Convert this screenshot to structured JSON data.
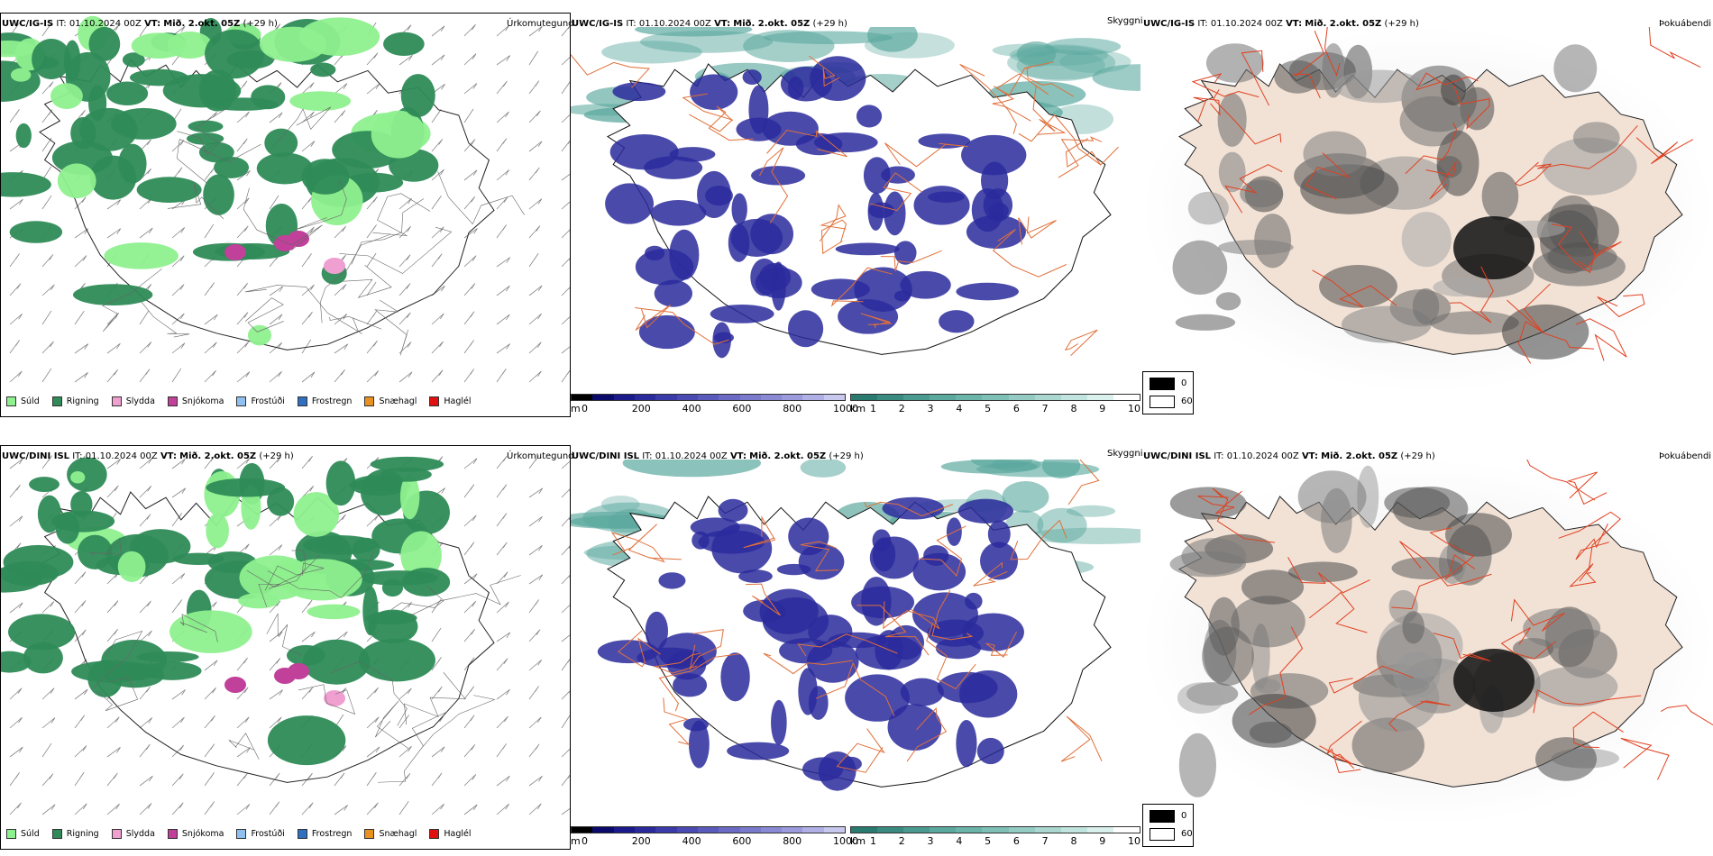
{
  "rows": [
    {
      "model": "UWC/IG-IS",
      "precip_title": "Úrkomutegund",
      "vis_title": "Skyggni",
      "fog_title": "Þokuábendi",
      "it_label": "IT:",
      "it_value": "01.10.2024 00Z",
      "vt_label": "VT:",
      "vt_value": "Mið. 2.okt. 05Z",
      "lead": "(+29 h)"
    },
    {
      "model": "UWC/DINI ISL",
      "precip_title": "Úrkomutegund",
      "vis_title": "Skyggni",
      "fog_title": "Þokuábendi",
      "it_label": "IT:",
      "it_value": "01.10.2024 00Z",
      "vt_label": "VT:",
      "vt_value": "Mið. 2.okt. 05Z",
      "lead": "(+29 h)"
    }
  ],
  "precip_legend": [
    {
      "label": "Súld",
      "color": "#8ef08e"
    },
    {
      "label": "Rigning",
      "color": "#2e8b57"
    },
    {
      "label": "Slydda",
      "color": "#f0a0d0"
    },
    {
      "label": "Snjókoma",
      "color": "#c0409a"
    },
    {
      "label": "Frostúði",
      "color": "#90c0f0"
    },
    {
      "label": "Frostregn",
      "color": "#3070c0"
    },
    {
      "label": "Snæhagl",
      "color": "#e89020"
    },
    {
      "label": "Haglél",
      "color": "#e01010"
    }
  ],
  "cloudbase_bar": {
    "unit": "m",
    "ticks": [
      "0",
      "200",
      "400",
      "600",
      "800",
      "1000"
    ],
    "colors": [
      "#000000",
      "#0a0a6a",
      "#1a1a8a",
      "#2a2a9c",
      "#3a3aa8",
      "#4a4ab2",
      "#5a5abc",
      "#6a6ac4",
      "#7a7acc",
      "#8a8ad4",
      "#9a9adc",
      "#b0b0e6",
      "#c8c8ee"
    ]
  },
  "visibility_bar": {
    "unit": "km",
    "ticks": [
      "1",
      "2",
      "3",
      "4",
      "5",
      "6",
      "7",
      "8",
      "9",
      "10"
    ],
    "colors": [
      "#2a7a70",
      "#3a8a80",
      "#4a9a90",
      "#5aa89e",
      "#6ab4aa",
      "#7ec0b6",
      "#94ccc4",
      "#aad8d0",
      "#c2e4de",
      "#daf0ec",
      "#ffffff"
    ]
  },
  "fog_legend": {
    "low": "0",
    "high": "60"
  },
  "colors": {
    "rain": "#2e8b57",
    "drizzle": "#8ef08e",
    "cloudbase": "#2a2a9c",
    "visibility": "#5aa89e",
    "roads": "#e0703a",
    "terrain": "#9a9a9a"
  }
}
